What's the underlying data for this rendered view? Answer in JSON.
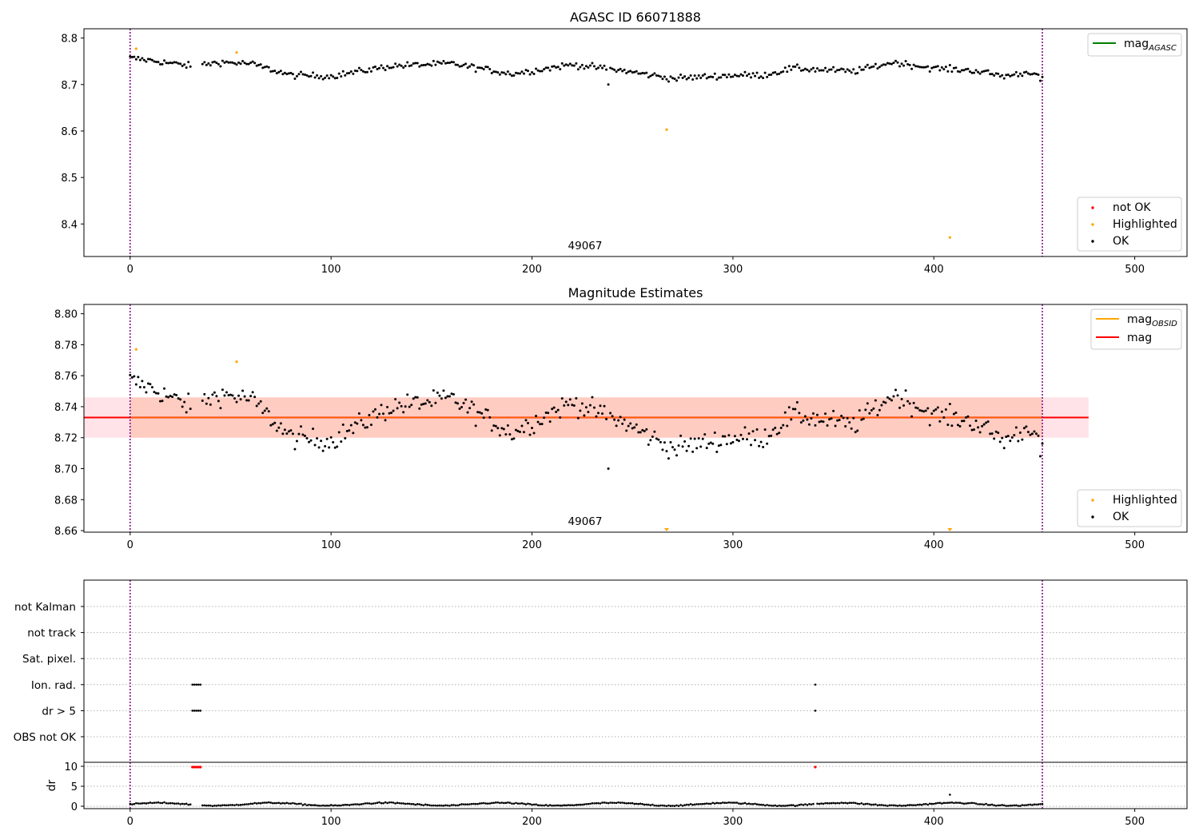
{
  "colors": {
    "ok": "#000000",
    "highlighted": "#ffa500",
    "not_ok": "#ff0000",
    "mag_agasc_line": "#008000",
    "mag_obsid_line": "#ffa500",
    "mag_line": "#ff0000",
    "interval_vline": "#800080",
    "band_outer": "#ffc0cb",
    "band_inner": "#ffa07a"
  },
  "chart_data": [
    {
      "id": "agasc",
      "type": "scatter",
      "title": "AGASC ID 66071888",
      "xlim": [
        -23,
        526
      ],
      "ylim": [
        8.33,
        8.82
      ],
      "xticks": [
        0,
        100,
        200,
        300,
        400,
        500
      ],
      "xtick_labels": [
        "0",
        "100",
        "200",
        "300",
        "400",
        "500"
      ],
      "yticks": [
        8.4,
        8.5,
        8.6,
        8.7,
        8.8
      ],
      "ytick_labels": [
        "8.4",
        "8.5",
        "8.6",
        "8.7",
        "8.8"
      ],
      "obsid_label": "49067",
      "obsid_x": 227,
      "interval_lines_x": [
        0,
        454
      ],
      "legend_top": {
        "position": "upper right",
        "entries": [
          {
            "label": "mag",
            "sub": "AGASC",
            "marker": "line",
            "color": "#008000"
          }
        ]
      },
      "legend_bottom": {
        "position": "lower right",
        "entries": [
          {
            "label": "not OK",
            "marker": "dot",
            "color": "#ff0000"
          },
          {
            "label": "Highlighted",
            "marker": "dot",
            "color": "#ffa500"
          },
          {
            "label": "OK",
            "marker": "dot",
            "color": "#000000"
          }
        ]
      },
      "highlighted_points": [
        [
          3,
          8.777
        ],
        [
          53,
          8.769
        ],
        [
          267,
          8.603
        ],
        [
          408,
          8.371
        ]
      ]
    },
    {
      "id": "estimates",
      "type": "scatter",
      "title": "Magnitude Estimates",
      "xlim": [
        -23,
        526
      ],
      "ylim": [
        8.659,
        8.806
      ],
      "xticks": [
        0,
        100,
        200,
        300,
        400,
        500
      ],
      "xtick_labels": [
        "0",
        "100",
        "200",
        "300",
        "400",
        "500"
      ],
      "yticks": [
        8.66,
        8.68,
        8.7,
        8.72,
        8.74,
        8.76,
        8.78,
        8.8
      ],
      "ytick_labels": [
        "8.66",
        "8.68",
        "8.70",
        "8.72",
        "8.74",
        "8.76",
        "8.78",
        "8.80"
      ],
      "obsid_label": "49067",
      "obsid_x": 227,
      "interval_lines_x": [
        0,
        454
      ],
      "mag_value": 8.733,
      "mag_obsid_value": 8.733,
      "band_outer": {
        "x": [
          -23,
          477
        ],
        "y": [
          8.72,
          8.746
        ]
      },
      "band_inner": {
        "x": [
          0,
          454
        ],
        "y": [
          8.72,
          8.746
        ]
      },
      "legend_top": {
        "position": "upper right",
        "entries": [
          {
            "label": "mag",
            "sub": "OBSID",
            "marker": "line",
            "color": "#ffa500"
          },
          {
            "label": "mag",
            "sub": "",
            "marker": "line",
            "color": "#ff0000"
          }
        ]
      },
      "legend_bottom": {
        "position": "lower right",
        "entries": [
          {
            "label": "Highlighted",
            "marker": "dot",
            "color": "#ffa500"
          },
          {
            "label": "OK",
            "marker": "dot",
            "color": "#000000"
          }
        ]
      },
      "highlighted_points": [
        [
          3,
          8.777
        ],
        [
          53,
          8.769
        ]
      ],
      "highlighted_offscale_x": [
        267,
        408
      ]
    },
    {
      "id": "flags",
      "type": "scatter",
      "xlim": [
        -23,
        526
      ],
      "interval_lines_x": [
        0,
        454
      ],
      "categories": [
        "OBS not OK",
        "dr > 5",
        "Ion. rad.",
        "Sat. pixel.",
        "not track",
        "not Kalman"
      ],
      "flag_points": [
        {
          "category": "Ion. rad.",
          "x": [
            31,
            32,
            33,
            34,
            35,
            341
          ]
        },
        {
          "category": "dr > 5",
          "x": [
            31,
            32,
            33,
            34,
            35,
            341
          ]
        }
      ]
    },
    {
      "id": "dr",
      "type": "scatter",
      "ylabel": "dr",
      "xlim": [
        -23,
        526
      ],
      "ylim": [
        -0.6,
        11
      ],
      "xticks": [
        0,
        100,
        200,
        300,
        400,
        500
      ],
      "xtick_labels": [
        "0",
        "100",
        "200",
        "300",
        "400",
        "500"
      ],
      "yticks": [
        0,
        5,
        10
      ],
      "ytick_labels": [
        "0",
        "5",
        "10"
      ],
      "interval_lines_x": [
        0,
        454
      ],
      "not_ok_x": [
        31,
        32,
        33,
        34,
        35,
        341
      ],
      "not_ok_y": 9.8,
      "outlier_points": [
        [
          408,
          2.9
        ]
      ]
    }
  ]
}
